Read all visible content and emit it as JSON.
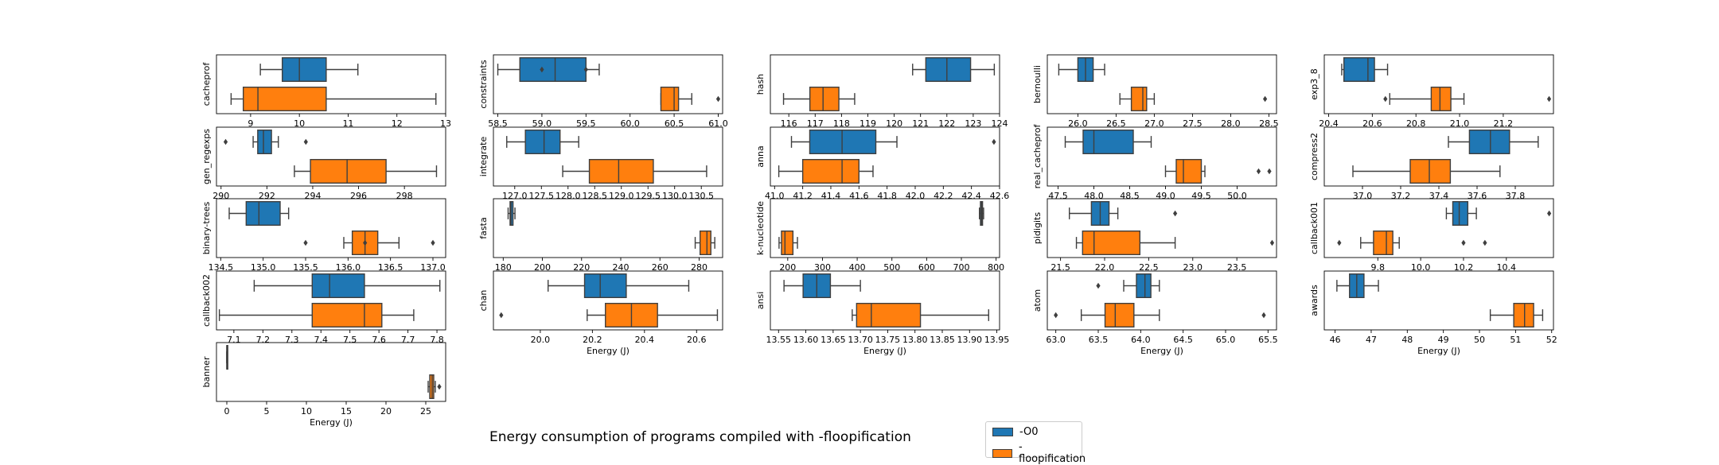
{
  "caption": "Energy consumption of programs compiled with -floopification",
  "legend": {
    "items": [
      {
        "label": "-O0",
        "color": "#1f77b4"
      },
      {
        "label": "-floopification",
        "color": "#ff7f0e"
      }
    ]
  },
  "colors": {
    "o0": "#1f77b4",
    "floop": "#ff7f0e",
    "line": "#3f3f3f"
  },
  "chart_data": [
    {
      "type": "box",
      "ylabel": "cacheprof",
      "xlabel": "",
      "xlim": [
        8.3,
        13.0
      ],
      "ticks": [
        9,
        10,
        11,
        12,
        13
      ],
      "series": [
        {
          "name": "-O0",
          "whislo": 9.2,
          "q1": 9.65,
          "med": 10.0,
          "q3": 10.55,
          "whishi": 11.2,
          "fliers": []
        },
        {
          "name": "-floopification",
          "whislo": 8.6,
          "q1": 8.85,
          "med": 9.15,
          "q3": 10.55,
          "whishi": 12.8,
          "fliers": []
        }
      ]
    },
    {
      "type": "box",
      "ylabel": "constraints",
      "xlabel": "",
      "xlim": [
        58.45,
        61.05
      ],
      "ticks": [
        58.5,
        59.0,
        59.5,
        60.0,
        60.5,
        61.0
      ],
      "series": [
        {
          "name": "-O0",
          "whislo": 58.5,
          "q1": 58.75,
          "med": 59.15,
          "q3": 59.5,
          "whishi": 59.65,
          "fliers": [
            59.0,
            59.5
          ]
        },
        {
          "name": "-floopification",
          "whislo": 60.35,
          "q1": 60.35,
          "med": 60.5,
          "q3": 60.55,
          "whishi": 60.7,
          "fliers": [
            61.0
          ]
        }
      ]
    },
    {
      "type": "box",
      "ylabel": "hash",
      "xlabel": "",
      "xlim": [
        115.3,
        124.0
      ],
      "ticks": [
        116,
        117,
        118,
        119,
        120,
        121,
        122,
        123,
        124
      ],
      "series": [
        {
          "name": "-O0",
          "whislo": 120.7,
          "q1": 121.2,
          "med": 122.0,
          "q3": 122.9,
          "whishi": 123.8,
          "fliers": []
        },
        {
          "name": "-floopification",
          "whislo": 115.8,
          "q1": 116.8,
          "med": 117.3,
          "q3": 117.9,
          "whishi": 118.5,
          "fliers": []
        }
      ]
    },
    {
      "type": "box",
      "ylabel": "bernoulli",
      "xlabel": "",
      "xlim": [
        25.6,
        28.6
      ],
      "ticks": [
        26.0,
        26.5,
        27.0,
        27.5,
        28.0,
        28.5
      ],
      "series": [
        {
          "name": "-O0",
          "whislo": 25.75,
          "q1": 26.0,
          "med": 26.1,
          "q3": 26.2,
          "whishi": 26.35,
          "fliers": []
        },
        {
          "name": "-floopification",
          "whislo": 26.55,
          "q1": 26.7,
          "med": 26.85,
          "q3": 26.9,
          "whishi": 27.0,
          "fliers": [
            28.45
          ]
        }
      ]
    },
    {
      "type": "box",
      "ylabel": "exp3_8",
      "xlabel": "",
      "xlim": [
        20.38,
        21.43
      ],
      "ticks": [
        20.4,
        20.6,
        20.8,
        21.0,
        21.2
      ],
      "series": [
        {
          "name": "-O0",
          "whislo": 20.46,
          "q1": 20.47,
          "med": 20.58,
          "q3": 20.61,
          "whishi": 20.67,
          "fliers": []
        },
        {
          "name": "-floopification",
          "whislo": 20.68,
          "q1": 20.87,
          "med": 20.91,
          "q3": 20.96,
          "whishi": 21.02,
          "fliers": [
            20.66,
            21.41
          ]
        }
      ]
    },
    {
      "type": "box",
      "ylabel": "gen_regexps",
      "xlabel": "",
      "xlim": [
        289.8,
        299.8
      ],
      "ticks": [
        290,
        292,
        294,
        296,
        298
      ],
      "series": [
        {
          "name": "-O0",
          "whislo": 291.4,
          "q1": 291.6,
          "med": 291.85,
          "q3": 292.2,
          "whishi": 292.5,
          "fliers": [
            290.2,
            293.7
          ]
        },
        {
          "name": "-floopification",
          "whislo": 293.2,
          "q1": 293.9,
          "med": 295.5,
          "q3": 297.2,
          "whishi": 299.4,
          "fliers": []
        }
      ]
    },
    {
      "type": "box",
      "ylabel": "integrate",
      "xlabel": "",
      "xlim": [
        126.6,
        130.9
      ],
      "ticks": [
        127.0,
        127.5,
        128.0,
        128.5,
        129.0,
        129.5,
        130.0,
        130.5
      ],
      "series": [
        {
          "name": "-O0",
          "whislo": 126.85,
          "q1": 127.2,
          "med": 127.55,
          "q3": 127.85,
          "whishi": 128.2,
          "fliers": []
        },
        {
          "name": "-floopification",
          "whislo": 127.9,
          "q1": 128.4,
          "med": 128.95,
          "q3": 129.6,
          "whishi": 130.6,
          "fliers": []
        }
      ]
    },
    {
      "type": "box",
      "ylabel": "anna",
      "xlabel": "",
      "xlim": [
        40.97,
        42.6
      ],
      "ticks": [
        41.0,
        41.2,
        41.4,
        41.6,
        41.8,
        42.0,
        42.2,
        42.4,
        42.6
      ],
      "series": [
        {
          "name": "-O0",
          "whislo": 41.12,
          "q1": 41.25,
          "med": 41.48,
          "q3": 41.72,
          "whishi": 41.87,
          "fliers": [
            42.56
          ]
        },
        {
          "name": "-floopification",
          "whislo": 41.03,
          "q1": 41.2,
          "med": 41.48,
          "q3": 41.6,
          "whishi": 41.7,
          "fliers": []
        }
      ]
    },
    {
      "type": "box",
      "ylabel": "real_cacheprof",
      "xlabel": "",
      "xlim": [
        47.35,
        50.55
      ],
      "ticks": [
        47.5,
        48.0,
        48.5,
        49.0,
        49.5,
        50.0
      ],
      "series": [
        {
          "name": "-O0",
          "whislo": 47.6,
          "q1": 47.85,
          "med": 48.0,
          "q3": 48.55,
          "whishi": 48.8,
          "fliers": []
        },
        {
          "name": "-floopification",
          "whislo": 49.0,
          "q1": 49.15,
          "med": 49.25,
          "q3": 49.5,
          "whishi": 49.55,
          "fliers": [
            50.3,
            50.45
          ]
        }
      ]
    },
    {
      "type": "box",
      "ylabel": "compress2",
      "xlabel": "",
      "xlim": [
        36.8,
        38.0
      ],
      "ticks": [
        37.0,
        37.2,
        37.4,
        37.6,
        37.8
      ],
      "series": [
        {
          "name": "-O0",
          "whislo": 37.45,
          "q1": 37.56,
          "med": 37.67,
          "q3": 37.77,
          "whishi": 37.92,
          "fliers": []
        },
        {
          "name": "-floopification",
          "whislo": 36.95,
          "q1": 37.25,
          "med": 37.35,
          "q3": 37.46,
          "whishi": 37.72,
          "fliers": []
        }
      ]
    },
    {
      "type": "box",
      "ylabel": "binary-trees",
      "xlabel": "",
      "xlim": [
        134.45,
        137.15
      ],
      "ticks": [
        134.5,
        135.0,
        135.5,
        136.0,
        136.5,
        137.0
      ],
      "series": [
        {
          "name": "-O0",
          "whislo": 134.6,
          "q1": 134.8,
          "med": 134.95,
          "q3": 135.2,
          "whishi": 135.3,
          "fliers": []
        },
        {
          "name": "-floopification",
          "whislo": 135.95,
          "q1": 136.05,
          "med": 136.2,
          "q3": 136.35,
          "whishi": 136.6,
          "fliers": [
            136.2,
            135.5,
            137.0
          ]
        }
      ]
    },
    {
      "type": "box",
      "ylabel": "fasta",
      "xlabel": "",
      "xlim": [
        175,
        292
      ],
      "ticks": [
        180,
        200,
        220,
        240,
        260,
        280
      ],
      "series": [
        {
          "name": "-O0",
          "whislo": 182.5,
          "q1": 183.5,
          "med": 184,
          "q3": 185,
          "whishi": 186,
          "fliers": []
        },
        {
          "name": "-floopification",
          "whislo": 278,
          "q1": 280.5,
          "med": 284,
          "q3": 286,
          "whishi": 288,
          "fliers": []
        }
      ]
    },
    {
      "type": "box",
      "ylabel": "k-nucleotide",
      "xlabel": "",
      "xlim": [
        150,
        810
      ],
      "ticks": [
        200,
        300,
        400,
        500,
        600,
        700,
        800
      ],
      "series": [
        {
          "name": "-O0",
          "whislo": 752,
          "q1": 755,
          "med": 758,
          "q3": 761,
          "whishi": 764,
          "fliers": []
        },
        {
          "name": "-floopification",
          "whislo": 175,
          "q1": 182,
          "med": 192,
          "q3": 215,
          "whishi": 228,
          "fliers": []
        }
      ]
    },
    {
      "type": "box",
      "ylabel": "pidigits",
      "xlabel": "",
      "xlim": [
        21.35,
        23.95
      ],
      "ticks": [
        21.5,
        22.0,
        22.5,
        23.0,
        23.5
      ],
      "series": [
        {
          "name": "-O0",
          "whislo": 21.6,
          "q1": 21.85,
          "med": 21.95,
          "q3": 22.05,
          "whishi": 22.15,
          "fliers": [
            22.8
          ]
        },
        {
          "name": "-floopification",
          "whislo": 21.68,
          "q1": 21.75,
          "med": 21.88,
          "q3": 22.4,
          "whishi": 22.8,
          "fliers": [
            23.9
          ]
        }
      ]
    },
    {
      "type": "box",
      "ylabel": "callback001",
      "xlabel": "",
      "xlim": [
        9.55,
        10.62
      ],
      "ticks": [
        9.8,
        10.0,
        10.2,
        10.4
      ],
      "series": [
        {
          "name": "-O0",
          "whislo": 10.12,
          "q1": 10.15,
          "med": 10.18,
          "q3": 10.22,
          "whishi": 10.26,
          "fliers": [
            10.6
          ]
        },
        {
          "name": "-floopification",
          "whislo": 9.72,
          "q1": 9.78,
          "med": 9.84,
          "q3": 9.87,
          "whishi": 9.9,
          "fliers": [
            9.62,
            10.2,
            10.3
          ]
        }
      ]
    },
    {
      "type": "box",
      "ylabel": "callback002",
      "xlabel": "",
      "xlim": [
        7.04,
        7.83
      ],
      "ticks": [
        7.1,
        7.2,
        7.3,
        7.4,
        7.5,
        7.6,
        7.7,
        7.8
      ],
      "series": [
        {
          "name": "-O0",
          "whislo": 7.17,
          "q1": 7.37,
          "med": 7.43,
          "q3": 7.55,
          "whishi": 7.81,
          "fliers": []
        },
        {
          "name": "-floopification",
          "whislo": 7.05,
          "q1": 7.37,
          "med": 7.55,
          "q3": 7.61,
          "whishi": 7.72,
          "fliers": []
        }
      ]
    },
    {
      "type": "box",
      "ylabel": "chan",
      "xlabel": "Energy (J)",
      "xlim": [
        19.82,
        20.7
      ],
      "ticks": [
        20.0,
        20.2,
        20.4,
        20.6
      ],
      "series": [
        {
          "name": "-O0",
          "whislo": 20.03,
          "q1": 20.17,
          "med": 20.23,
          "q3": 20.33,
          "whishi": 20.57,
          "fliers": []
        },
        {
          "name": "-floopification",
          "whislo": 20.18,
          "q1": 20.25,
          "med": 20.35,
          "q3": 20.45,
          "whishi": 20.68,
          "fliers": [
            19.85
          ]
        }
      ]
    },
    {
      "type": "box",
      "ylabel": "ansi",
      "xlabel": "Energy (J)",
      "xlim": [
        13.535,
        13.955
      ],
      "ticks": [
        13.55,
        13.6,
        13.65,
        13.7,
        13.75,
        13.8,
        13.85,
        13.9,
        13.95
      ],
      "series": [
        {
          "name": "-O0",
          "whislo": 13.56,
          "q1": 13.595,
          "med": 13.62,
          "q3": 13.645,
          "whishi": 13.7,
          "fliers": []
        },
        {
          "name": "-floopification",
          "whislo": 13.685,
          "q1": 13.693,
          "med": 13.72,
          "q3": 13.81,
          "whishi": 13.935,
          "fliers": []
        }
      ]
    },
    {
      "type": "box",
      "ylabel": "atom",
      "xlabel": "Energy (J)",
      "xlim": [
        62.9,
        65.6
      ],
      "ticks": [
        63.0,
        63.5,
        64.0,
        64.5,
        65.0,
        65.5
      ],
      "series": [
        {
          "name": "-O0",
          "whislo": 63.8,
          "q1": 63.95,
          "med": 64.05,
          "q3": 64.12,
          "whishi": 64.22,
          "fliers": [
            63.5
          ]
        },
        {
          "name": "-floopification",
          "whislo": 63.3,
          "q1": 63.58,
          "med": 63.7,
          "q3": 63.92,
          "whishi": 64.22,
          "fliers": [
            63.0,
            65.45
          ]
        }
      ]
    },
    {
      "type": "box",
      "ylabel": "awards",
      "xlabel": "Energy (J)",
      "xlim": [
        45.7,
        52.05
      ],
      "ticks": [
        46,
        47,
        48,
        49,
        50,
        51,
        52
      ],
      "series": [
        {
          "name": "-O0",
          "whislo": 46.05,
          "q1": 46.4,
          "med": 46.6,
          "q3": 46.8,
          "whishi": 47.2,
          "fliers": []
        },
        {
          "name": "-floopification",
          "whislo": 50.3,
          "q1": 50.95,
          "med": 51.25,
          "q3": 51.5,
          "whishi": 51.75,
          "fliers": []
        }
      ]
    },
    {
      "type": "box",
      "ylabel": "banner",
      "xlabel": "Energy (J)",
      "xlim": [
        -1.3,
        27.5
      ],
      "ticks": [
        0,
        5,
        10,
        15,
        20,
        25
      ],
      "series": [
        {
          "name": "-O0",
          "whislo": 0.0,
          "q1": 0.0,
          "med": 0.0,
          "q3": 0.0,
          "whishi": 0.0,
          "fliers": []
        },
        {
          "name": "-floopification",
          "whislo": 25.3,
          "q1": 25.5,
          "med": 25.8,
          "q3": 26.0,
          "whishi": 26.2,
          "fliers": [
            26.7
          ]
        }
      ]
    }
  ]
}
